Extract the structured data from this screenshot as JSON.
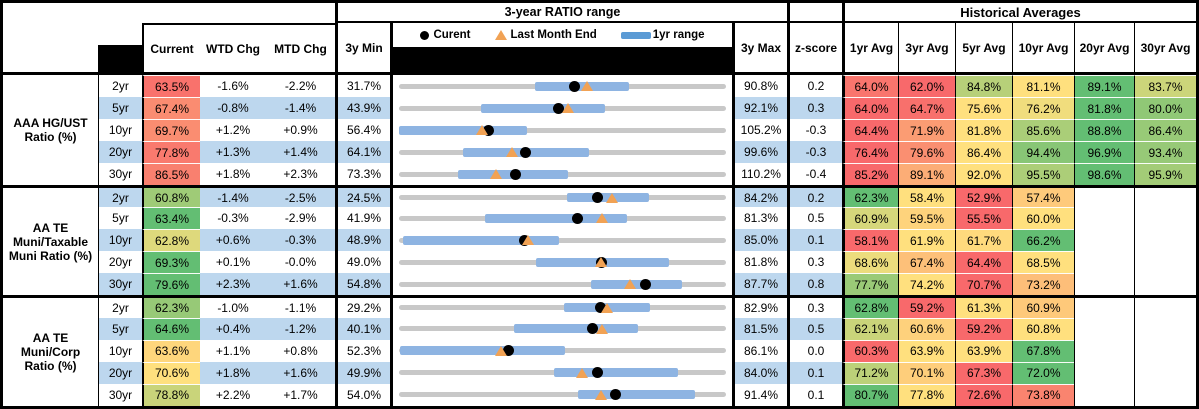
{
  "header": {
    "range_group_title": "3-year RATIO range",
    "historical_group_title": "Historical Averages",
    "columns": {
      "current": "Current",
      "wtd_chg": "WTD Chg",
      "mtd_chg": "MTD Chg",
      "min_3y": "3y Min",
      "max_3y": "3y Max",
      "z_score": "z-score"
    },
    "avg_columns": [
      "1yr Avg",
      "3yr Avg",
      "5yr Avg",
      "10yr Avg",
      "20yr Avg",
      "30yr Avg"
    ],
    "legend": {
      "current": "Curent",
      "last_month": "Last Month End",
      "range": "1yr range"
    }
  },
  "colors": {
    "scale_red": "#F8696B",
    "scale_yellow": "#FFE07E",
    "scale_green": "#63BE73",
    "row_band_blue": "#BDD7EE",
    "range_bar_blue": "#8EB4E2",
    "legend_bar_blue": "#5B9BD5",
    "range_track_gray": "#C8C8C8",
    "marker_current_dot": "#000000",
    "marker_last_month_triangle": "#F1A254",
    "header_black": "#000000"
  },
  "chart_data": {
    "type": "table",
    "embedded_row_chart": {
      "type": "bullet-range",
      "x_domain": "per-row [3y Min, 3y Max]",
      "bar": "1yr range",
      "dot": "Current",
      "triangle": "Last Month End"
    },
    "sections": [
      {
        "label": "AAA HG/UST Ratio (%)",
        "rows": [
          {
            "tenor": "2yr",
            "current": 63.5,
            "wtd": "-1.6%",
            "mtd": "-2.2%",
            "min_3y": 31.7,
            "max_3y": 90.8,
            "z": "0.2",
            "last_month": 65.7,
            "range_1yr": [
              56.3,
              73.2
            ],
            "avgs": [
              64.0,
              62.0,
              84.8,
              81.1,
              89.1,
              83.7
            ]
          },
          {
            "tenor": "5yr",
            "current": 67.4,
            "wtd": "-0.8%",
            "mtd": "-1.4%",
            "min_3y": 43.9,
            "max_3y": 92.1,
            "z": "0.3",
            "last_month": 68.8,
            "range_1yr": [
              56.0,
              74.2
            ],
            "avgs": [
              64.0,
              64.7,
              75.6,
              76.2,
              81.8,
              80.0
            ]
          },
          {
            "tenor": "10yr",
            "current": 69.7,
            "wtd": "+1.2%",
            "mtd": "+0.9%",
            "min_3y": 56.4,
            "max_3y": 105.2,
            "z": "-0.3",
            "last_month": 68.8,
            "range_1yr": [
              56.4,
              75.5
            ],
            "avgs": [
              64.4,
              71.9,
              81.8,
              85.6,
              88.8,
              86.4
            ]
          },
          {
            "tenor": "20yr",
            "current": 77.8,
            "wtd": "+1.3%",
            "mtd": "+1.4%",
            "min_3y": 64.1,
            "max_3y": 99.6,
            "z": "-0.3",
            "last_month": 76.4,
            "range_1yr": [
              71.1,
              84.7
            ],
            "avgs": [
              76.4,
              79.6,
              86.4,
              94.4,
              96.9,
              93.4
            ]
          },
          {
            "tenor": "30yr",
            "current": 86.5,
            "wtd": "+1.8%",
            "mtd": "+2.3%",
            "min_3y": 73.3,
            "max_3y": 110.2,
            "z": "-0.4",
            "last_month": 84.2,
            "range_1yr": [
              80.0,
              92.4
            ],
            "avgs": [
              85.2,
              89.1,
              92.0,
              95.5,
              98.6,
              95.9
            ]
          }
        ]
      },
      {
        "label": "AA TE Muni/Taxable Muni Ratio (%)",
        "rows": [
          {
            "tenor": "2yr",
            "current": 60.8,
            "wtd": "-1.4%",
            "mtd": "-2.5%",
            "min_3y": 24.5,
            "max_3y": 84.2,
            "z": "0.2",
            "last_month": 63.3,
            "range_1yr": [
              55.2,
              70.2
            ],
            "avgs": [
              62.3,
              58.4,
              52.9,
              57.4,
              null,
              null
            ]
          },
          {
            "tenor": "5yr",
            "current": 63.4,
            "wtd": "-0.3%",
            "mtd": "-2.9%",
            "min_3y": 41.9,
            "max_3y": 81.3,
            "z": "0.5",
            "last_month": 66.3,
            "range_1yr": [
              52.3,
              69.4
            ],
            "avgs": [
              60.9,
              59.5,
              55.5,
              60.0,
              null,
              null
            ]
          },
          {
            "tenor": "10yr",
            "current": 62.8,
            "wtd": "+0.6%",
            "mtd": "-0.3%",
            "min_3y": 48.9,
            "max_3y": 85.0,
            "z": "0.1",
            "last_month": 63.1,
            "range_1yr": [
              49.3,
              66.6
            ],
            "avgs": [
              58.1,
              61.9,
              61.7,
              66.2,
              null,
              null
            ]
          },
          {
            "tenor": "20yr",
            "current": 69.3,
            "wtd": "+0.1%",
            "mtd": "-0.0%",
            "min_3y": 49.0,
            "max_3y": 81.8,
            "z": "0.3",
            "last_month": 69.3,
            "range_1yr": [
              62.7,
              76.1
            ],
            "avgs": [
              68.6,
              67.4,
              64.4,
              68.5,
              null,
              null
            ]
          },
          {
            "tenor": "30yr",
            "current": 79.6,
            "wtd": "+2.3%",
            "mtd": "+1.6%",
            "min_3y": 54.8,
            "max_3y": 87.7,
            "z": "0.8",
            "last_month": 78.0,
            "range_1yr": [
              74.1,
              83.3
            ],
            "avgs": [
              77.7,
              74.2,
              70.7,
              73.2,
              null,
              null
            ]
          }
        ]
      },
      {
        "label": "AA TE Muni/Corp Ratio (%)",
        "rows": [
          {
            "tenor": "2yr",
            "current": 62.3,
            "wtd": "-1.0%",
            "mtd": "-1.1%",
            "min_3y": 29.2,
            "max_3y": 82.9,
            "z": "0.3",
            "last_month": 63.4,
            "range_1yr": [
              56.3,
              70.5
            ],
            "avgs": [
              62.8,
              59.2,
              61.3,
              60.9,
              null,
              null
            ]
          },
          {
            "tenor": "5yr",
            "current": 64.6,
            "wtd": "+0.4%",
            "mtd": "-1.2%",
            "min_3y": 40.1,
            "max_3y": 81.5,
            "z": "0.5",
            "last_month": 65.8,
            "range_1yr": [
              54.7,
              70.3
            ],
            "avgs": [
              62.1,
              60.6,
              59.2,
              60.8,
              null,
              null
            ]
          },
          {
            "tenor": "10yr",
            "current": 63.6,
            "wtd": "+1.1%",
            "mtd": "+0.8%",
            "min_3y": 52.3,
            "max_3y": 86.1,
            "z": "0.0",
            "last_month": 62.8,
            "range_1yr": [
              52.4,
              69.5
            ],
            "avgs": [
              60.3,
              63.9,
              63.9,
              67.8,
              null,
              null
            ]
          },
          {
            "tenor": "20yr",
            "current": 70.6,
            "wtd": "+1.8%",
            "mtd": "+1.6%",
            "min_3y": 49.9,
            "max_3y": 84.0,
            "z": "0.1",
            "last_month": 69.0,
            "range_1yr": [
              66.1,
              79.0
            ],
            "avgs": [
              71.2,
              70.1,
              67.3,
              72.0,
              null,
              null
            ]
          },
          {
            "tenor": "30yr",
            "current": 78.8,
            "wtd": "+2.2%",
            "mtd": "+1.7%",
            "min_3y": 54.0,
            "max_3y": 91.4,
            "z": "0.1",
            "last_month": 77.1,
            "range_1yr": [
              74.5,
              87.8
            ],
            "avgs": [
              80.7,
              77.8,
              72.6,
              73.8,
              null,
              null
            ]
          }
        ]
      }
    ]
  }
}
